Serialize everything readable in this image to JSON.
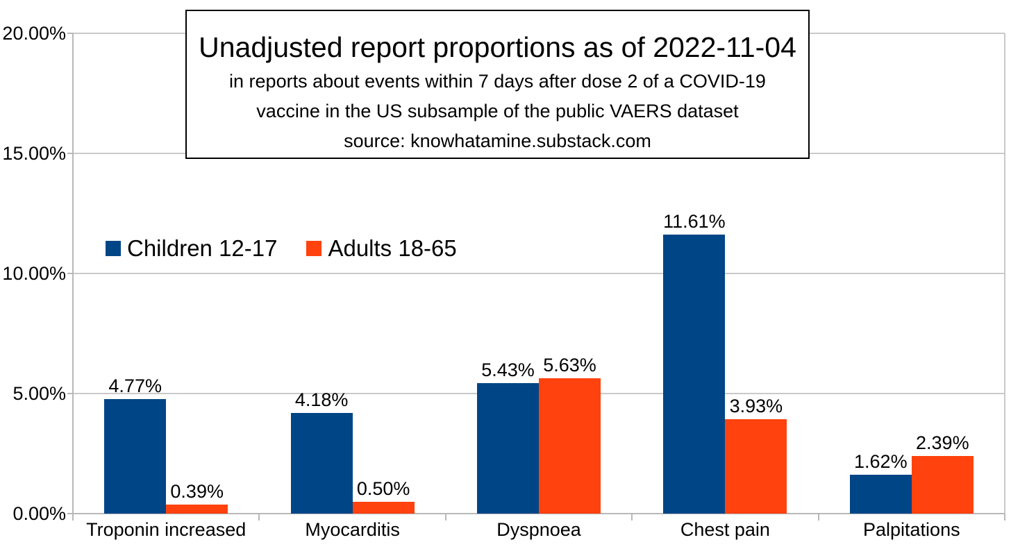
{
  "chart_data": {
    "type": "bar",
    "title": "Unadjusted report proportions as of 2022-11-04",
    "subtitle_lines": [
      "in reports about events within 7 days after dose 2 of a COVID-19",
      "vaccine in the US subsample of the public VAERS dataset"
    ],
    "source_line": "source: knowhatamine.substack.com",
    "categories": [
      "Troponin increased",
      "Myocarditis",
      "Dyspnoea",
      "Chest pain",
      "Palpitations"
    ],
    "series": [
      {
        "name": "Children 12-17",
        "color": "#004586",
        "values": [
          4.77,
          4.18,
          5.43,
          11.61,
          1.62
        ],
        "labels": [
          "4.77%",
          "4.18%",
          "5.43%",
          "11.61%",
          "1.62%"
        ]
      },
      {
        "name": "Adults 18-65",
        "color": "#ff420e",
        "values": [
          0.39,
          0.5,
          5.63,
          3.93,
          2.39
        ],
        "labels": [
          "0.39%",
          "0.50%",
          "5.63%",
          "3.93%",
          "2.39%"
        ]
      }
    ],
    "y_axis": {
      "min": 0,
      "max": 20,
      "tick_labels": [
        "20.00%",
        "15.00%",
        "10.00%",
        "5.00%",
        "0.00%"
      ]
    },
    "grid": true,
    "legend_position": "inside-top-left"
  },
  "colors": {
    "gridline": "#c9c9c9",
    "axis": "#b8b8b8",
    "text": "#000000",
    "background": "#ffffff",
    "title_box_border": "#000000"
  }
}
